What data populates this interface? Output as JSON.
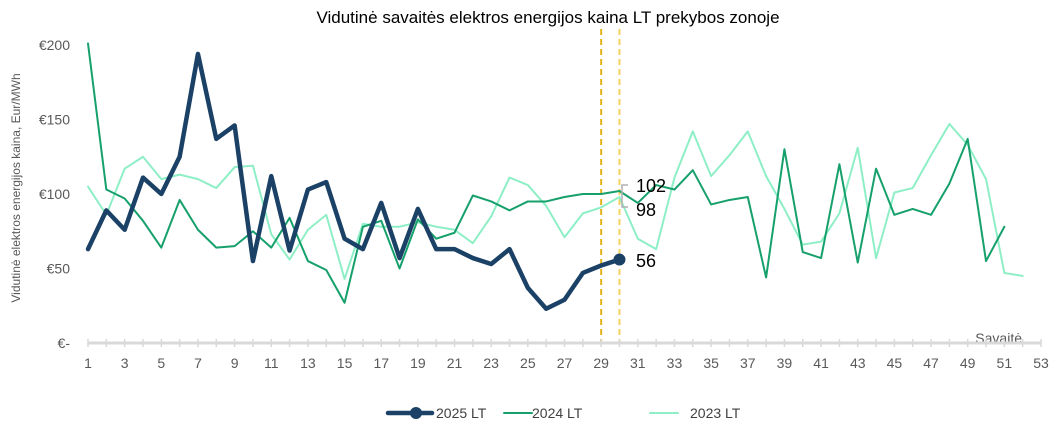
{
  "chart_data": {
    "type": "line",
    "title": "Vidutinė savaitės elektros energijos kaina LT prekybos zonoje",
    "ylabel": "Vidutinė elektros energijos kaina, Eur/MWh",
    "xlabel": "Savaitė",
    "ylim": [
      0,
      200
    ],
    "xlim": [
      1,
      53
    ],
    "y_ticks": [
      0,
      50,
      100,
      150,
      200
    ],
    "y_tick_labels": [
      "€-",
      "€50",
      "€100",
      "€150",
      "€200"
    ],
    "x_ticks": [
      1,
      3,
      5,
      7,
      9,
      11,
      13,
      15,
      17,
      19,
      21,
      23,
      25,
      27,
      29,
      31,
      33,
      35,
      37,
      39,
      41,
      43,
      45,
      47,
      49,
      51,
      53
    ],
    "x_tick_labels": [
      "1",
      "3",
      "5",
      "7",
      "9",
      "11",
      "13",
      "15",
      "17",
      "19",
      "21",
      "23",
      "25",
      "27",
      "29",
      "31",
      "33",
      "35",
      "37",
      "39",
      "41",
      "43",
      "45",
      "47",
      "49",
      "51",
      "53"
    ],
    "grid": false,
    "legend_position": "bottom",
    "vertical_markers": [
      29,
      30
    ],
    "annotations": [
      {
        "week": 30,
        "series": "2025 LT",
        "text": "56"
      },
      {
        "week": 30,
        "series": "2024 LT",
        "text": "102"
      },
      {
        "week": 30,
        "series": "2023 LT",
        "text": "98"
      }
    ],
    "series": [
      {
        "name": "2025 LT",
        "color": "#1b4266",
        "values": [
          63,
          89,
          76,
          111,
          100,
          125,
          194,
          137,
          146,
          55,
          112,
          62,
          103,
          108,
          70,
          63,
          94,
          57,
          90,
          63,
          63,
          57,
          53,
          63,
          37,
          23,
          29,
          47,
          52,
          56
        ]
      },
      {
        "name": "2024 LT",
        "color": "#16a06c",
        "values": [
          201,
          103,
          97,
          82,
          64,
          96,
          76,
          64,
          65,
          75,
          64,
          84,
          55,
          49,
          27,
          78,
          82,
          50,
          83,
          70,
          74,
          99,
          95,
          89,
          95,
          95,
          98,
          100,
          100,
          102,
          94,
          106,
          103,
          116,
          93,
          96,
          98,
          44,
          130,
          61,
          57,
          120,
          54,
          117,
          86,
          90,
          86,
          107,
          137,
          55,
          78
        ]
      },
      {
        "name": "2023 LT",
        "color": "#8eefc6",
        "values": [
          105,
          86,
          117,
          125,
          110,
          113,
          110,
          104,
          118,
          119,
          73,
          56,
          76,
          86,
          43,
          80,
          78,
          78,
          81,
          78,
          76,
          67,
          85,
          111,
          106,
          92,
          71,
          87,
          91,
          98,
          70,
          63,
          111,
          142,
          112,
          126,
          142,
          112,
          90,
          66,
          68,
          87,
          131,
          57,
          101,
          104,
          126,
          147,
          133,
          110,
          47,
          45
        ]
      }
    ]
  }
}
